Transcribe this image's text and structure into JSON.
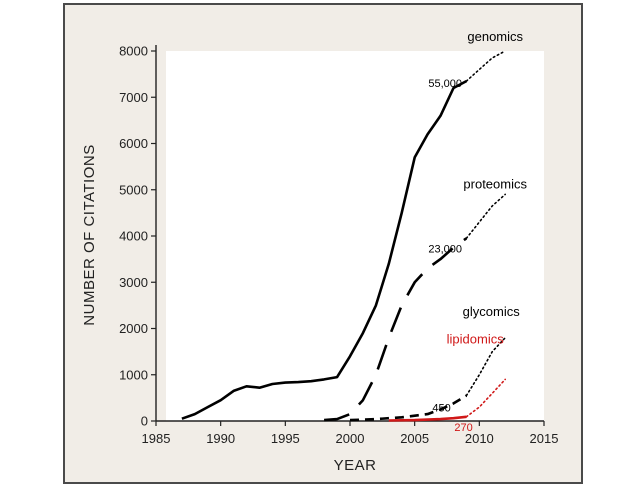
{
  "chart_data": {
    "type": "line",
    "title": "",
    "xlabel": "YEAR",
    "ylabel": "NUMBER OF CITATIONS",
    "xlim": [
      1985,
      2015
    ],
    "ylim": [
      0,
      8000
    ],
    "xticks": [
      1985,
      1990,
      1995,
      2000,
      2005,
      2010,
      2015
    ],
    "yticks": [
      0,
      1000,
      2000,
      3000,
      4000,
      5000,
      6000,
      7000,
      8000
    ],
    "grid": false,
    "legend": "inline-labels",
    "series": [
      {
        "name": "genomics",
        "color": "#000000",
        "line_style": "solid",
        "end_label": "55,000",
        "points": [
          [
            1987,
            50
          ],
          [
            1988,
            150
          ],
          [
            1989,
            300
          ],
          [
            1990,
            450
          ],
          [
            1991,
            650
          ],
          [
            1992,
            750
          ],
          [
            1993,
            720
          ],
          [
            1994,
            800
          ],
          [
            1995,
            830
          ],
          [
            1996,
            840
          ],
          [
            1997,
            860
          ],
          [
            1998,
            900
          ],
          [
            1999,
            950
          ],
          [
            2000,
            1400
          ],
          [
            2001,
            1900
          ],
          [
            2002,
            2500
          ],
          [
            2003,
            3400
          ],
          [
            2004,
            4500
          ],
          [
            2005,
            5700
          ],
          [
            2006,
            6200
          ],
          [
            2007,
            6600
          ],
          [
            2008,
            7200
          ],
          [
            2009,
            7350
          ]
        ],
        "projection": [
          [
            2009,
            7350
          ],
          [
            2010,
            7600
          ],
          [
            2011,
            7850
          ],
          [
            2012,
            8000
          ]
        ]
      },
      {
        "name": "proteomics",
        "color": "#000000",
        "line_style": "long-dash",
        "end_label": "23,000",
        "points": [
          [
            1998,
            20
          ],
          [
            1999,
            40
          ],
          [
            2000,
            150
          ],
          [
            2001,
            450
          ],
          [
            2002,
            1000
          ],
          [
            2003,
            1800
          ],
          [
            2004,
            2500
          ],
          [
            2005,
            3000
          ],
          [
            2006,
            3300
          ],
          [
            2007,
            3500
          ],
          [
            2008,
            3750
          ],
          [
            2009,
            3950
          ]
        ],
        "projection": [
          [
            2009,
            3950
          ],
          [
            2010,
            4300
          ],
          [
            2011,
            4650
          ],
          [
            2012,
            4900
          ]
        ]
      },
      {
        "name": "glycomics",
        "color": "#000000",
        "line_style": "dashed",
        "end_label": "450",
        "points": [
          [
            2000,
            20
          ],
          [
            2002,
            40
          ],
          [
            2004,
            80
          ],
          [
            2006,
            150
          ],
          [
            2007,
            250
          ],
          [
            2008,
            380
          ],
          [
            2009,
            550
          ]
        ],
        "projection": [
          [
            2009,
            550
          ],
          [
            2010,
            1000
          ],
          [
            2011,
            1500
          ],
          [
            2012,
            1800
          ]
        ]
      },
      {
        "name": "lipidomics",
        "color": "#d01818",
        "line_style": "solid",
        "end_label": "270",
        "points": [
          [
            2003,
            10
          ],
          [
            2005,
            20
          ],
          [
            2007,
            40
          ],
          [
            2008,
            60
          ],
          [
            2009,
            90
          ]
        ],
        "projection": [
          [
            2009,
            90
          ],
          [
            2010,
            300
          ],
          [
            2011,
            600
          ],
          [
            2012,
            900
          ]
        ]
      }
    ]
  }
}
